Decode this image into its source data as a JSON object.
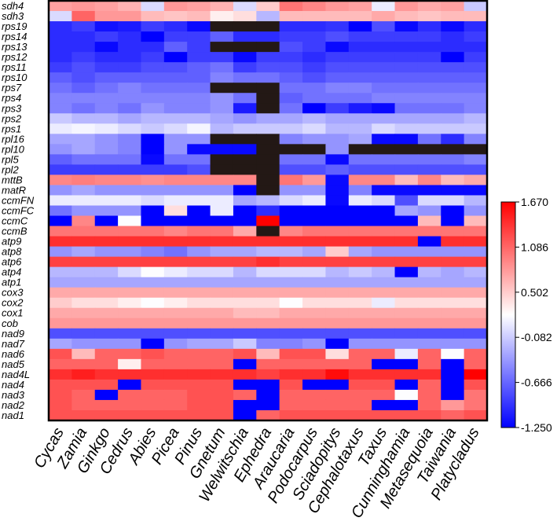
{
  "chart_data": {
    "type": "heatmap",
    "title": "",
    "rows": [
      "sdh4",
      "sdh3",
      "rps19",
      "rps14",
      "rps13",
      "rps12",
      "rps11",
      "rps10",
      "rps7",
      "rps4",
      "rps3",
      "rps2",
      "rps1",
      "rpl16",
      "rpl10",
      "rpl5",
      "rpl2",
      "mttB",
      "matR",
      "ccmFN",
      "ccmFC",
      "ccmC",
      "ccmB",
      "atp9",
      "atp8",
      "atp6",
      "atp4",
      "atp1",
      "cox3",
      "cox2",
      "cox1",
      "cob",
      "nad9",
      "nad7",
      "nad6",
      "nad5",
      "nad4L",
      "nad4",
      "nad3",
      "nad2",
      "nad1"
    ],
    "columns": [
      "Cycas",
      "Zamia",
      "Ginkgo",
      "Cedrus",
      "Abies",
      "Picea",
      "Pinus",
      "Gnetum",
      "Welwitschia",
      "Ephedra",
      "Araucaria",
      "Podocarpus",
      "Sciadopitys",
      "Cephalotaxus",
      "Taxus",
      "Cunninghamia",
      "Metasequoia",
      "Taiwania",
      "Platycladus"
    ],
    "missing_color": "#231815",
    "values": [
      [
        0.75,
        0.8,
        0.75,
        0.65,
        0.0,
        0.8,
        0.75,
        0.65,
        0.0,
        0.5,
        1.0,
        0.9,
        0.8,
        0.75,
        0.1,
        0.8,
        0.7,
        0.75,
        -0.1
      ],
      [
        0.0,
        1.1,
        0.8,
        0.8,
        0.6,
        0.55,
        0.6,
        0.3,
        0.4,
        -0.2,
        0.6,
        0.6,
        0.6,
        0.6,
        0.7,
        0.6,
        0.55,
        0.6,
        0.6
      ],
      [
        -1.0,
        -0.9,
        -1.15,
        -1.1,
        -0.9,
        -1.0,
        -1.2,
        null,
        null,
        null,
        -1.0,
        -1.0,
        -0.95,
        -1.25,
        -0.8,
        -1.2,
        -1.0,
        -1.2,
        -1.0
      ],
      [
        -1.0,
        -1.0,
        -0.9,
        -1.0,
        -1.25,
        -0.9,
        -0.9,
        -0.7,
        -1.0,
        -1.0,
        -0.9,
        -0.9,
        -0.8,
        -0.9,
        -0.9,
        -0.9,
        -0.9,
        -1.0,
        -0.9
      ],
      [
        -1.0,
        -1.0,
        -1.2,
        -1.0,
        -1.0,
        -0.7,
        -0.9,
        null,
        null,
        null,
        -0.8,
        -0.9,
        -1.2,
        -1.0,
        -1.0,
        -1.0,
        -1.0,
        -1.0,
        -1.0
      ],
      [
        -1.0,
        -0.9,
        -1.0,
        -1.0,
        -0.9,
        -1.25,
        -0.9,
        -0.9,
        -1.2,
        -0.9,
        -0.9,
        -1.0,
        -0.9,
        -0.9,
        -0.9,
        -0.9,
        -0.9,
        -1.25,
        -0.9
      ],
      [
        -0.9,
        -0.8,
        -0.9,
        -0.9,
        -0.8,
        -0.8,
        -0.7,
        -0.6,
        -0.9,
        -0.8,
        -0.8,
        -0.9,
        -0.8,
        -0.8,
        -0.8,
        -0.8,
        -0.8,
        -0.8,
        -0.8
      ],
      [
        -0.7,
        -0.8,
        -0.7,
        -0.7,
        -0.7,
        -0.7,
        -0.7,
        -0.5,
        -0.6,
        -0.6,
        -0.7,
        -0.8,
        -0.7,
        -0.7,
        -0.7,
        -0.7,
        -0.7,
        -0.7,
        -0.7
      ],
      [
        -0.6,
        -0.7,
        -0.6,
        -0.5,
        -0.6,
        -0.6,
        -0.6,
        null,
        null,
        null,
        -0.6,
        -0.6,
        -0.5,
        -0.5,
        -0.6,
        -0.6,
        -0.6,
        -0.6,
        -0.6
      ],
      [
        -0.5,
        -0.5,
        -0.5,
        -0.5,
        -0.5,
        -0.5,
        -0.5,
        -0.4,
        -0.6,
        null,
        -0.7,
        -0.6,
        -0.6,
        -0.6,
        -0.5,
        -0.5,
        -0.5,
        -0.5,
        -0.5
      ],
      [
        -0.5,
        -0.6,
        -0.5,
        -0.6,
        -0.4,
        -0.5,
        -0.5,
        -0.4,
        -1.1,
        null,
        -0.6,
        -1.25,
        -0.9,
        -1.1,
        -1.2,
        -0.6,
        -0.6,
        -0.6,
        -0.5
      ],
      [
        -0.1,
        -0.2,
        -0.2,
        -0.3,
        -0.2,
        -0.2,
        -0.2,
        -0.3,
        -0.4,
        -0.3,
        -0.3,
        -0.2,
        -0.3,
        -0.3,
        -0.3,
        -0.3,
        -0.3,
        -0.3,
        -0.2
      ],
      [
        0.1,
        0.15,
        0.1,
        0.0,
        -0.1,
        0.0,
        0.15,
        -0.2,
        -0.1,
        -0.1,
        -0.1,
        0.0,
        -0.2,
        -0.2,
        0.0,
        -0.1,
        -0.1,
        -0.1,
        -0.1
      ],
      [
        -0.3,
        -0.3,
        -0.4,
        -0.5,
        -1.25,
        -0.4,
        -0.4,
        null,
        null,
        null,
        -0.5,
        -0.4,
        -0.4,
        -0.3,
        -1.2,
        -1.2,
        -0.6,
        -1.0,
        -0.5
      ],
      [
        -0.4,
        -0.3,
        -0.4,
        -0.5,
        -1.25,
        -0.4,
        -1.2,
        -1.2,
        -1.2,
        null,
        null,
        null,
        -0.4,
        null,
        null,
        null,
        null,
        null,
        null
      ],
      [
        -0.7,
        -0.6,
        -0.6,
        -0.6,
        -1.2,
        -0.6,
        -0.6,
        null,
        null,
        null,
        -0.6,
        -0.6,
        -1.2,
        -0.6,
        -0.6,
        -0.6,
        -0.6,
        -0.6,
        -0.5
      ],
      [
        -0.9,
        -0.9,
        -0.9,
        -0.9,
        -0.9,
        -0.9,
        -0.8,
        null,
        null,
        null,
        -0.8,
        -0.8,
        -0.7,
        -0.8,
        -0.8,
        -0.8,
        -0.8,
        -0.8,
        -0.8
      ],
      [
        0.9,
        0.95,
        0.9,
        0.9,
        0.85,
        0.9,
        0.9,
        0.9,
        0.9,
        null,
        1.0,
        0.8,
        -1.2,
        0.9,
        0.9,
        0.6,
        0.9,
        0.6,
        0.7
      ],
      [
        -0.4,
        -0.3,
        -0.4,
        -0.4,
        -0.4,
        -0.4,
        -0.4,
        -0.4,
        -1.25,
        null,
        -0.4,
        -0.4,
        -1.2,
        -0.5,
        -1.2,
        -1.2,
        -1.2,
        -1.2,
        -1.2
      ],
      [
        0.1,
        0.1,
        0.1,
        0.1,
        0.0,
        0.1,
        0.1,
        0.1,
        -0.3,
        -0.2,
        0.0,
        0.1,
        -1.2,
        0.1,
        0.0,
        -0.8,
        0.0,
        0.0,
        -0.2
      ],
      [
        -0.6,
        -0.4,
        -0.4,
        -0.4,
        -1.25,
        0.4,
        -1.25,
        0.1,
        -1.25,
        -1.0,
        -1.25,
        -1.25,
        -1.25,
        -1.25,
        -1.25,
        -0.3,
        -0.4,
        -1.25,
        -0.4
      ],
      [
        -1.25,
        0.9,
        -1.25,
        0.2,
        -1.25,
        -1.25,
        -1.25,
        -1.25,
        -1.25,
        1.67,
        -1.25,
        -1.25,
        -1.25,
        -1.25,
        -1.25,
        -1.25,
        0.6,
        -1.25,
        0.6
      ],
      [
        1.0,
        1.0,
        1.0,
        1.0,
        1.0,
        0.9,
        1.0,
        1.0,
        0.7,
        null,
        0.9,
        1.0,
        1.0,
        1.0,
        1.0,
        1.0,
        1.0,
        1.0,
        1.0
      ],
      [
        1.4,
        1.4,
        1.4,
        1.4,
        1.4,
        1.4,
        1.4,
        1.4,
        1.4,
        1.4,
        1.4,
        1.4,
        1.4,
        1.4,
        1.4,
        1.4,
        -1.25,
        1.4,
        1.4
      ],
      [
        -0.4,
        -0.3,
        -0.4,
        -0.4,
        -0.5,
        -0.6,
        -0.4,
        -0.3,
        -0.3,
        -0.2,
        -0.2,
        -0.3,
        0.5,
        -0.3,
        -0.4,
        -0.4,
        -0.4,
        -0.4,
        -0.4
      ],
      [
        1.3,
        1.3,
        1.3,
        1.3,
        1.3,
        1.3,
        1.3,
        1.3,
        1.3,
        1.4,
        1.3,
        1.3,
        1.3,
        1.3,
        1.3,
        1.3,
        1.3,
        1.3,
        1.3
      ],
      [
        -0.2,
        -0.2,
        -0.2,
        0.0,
        0.2,
        0.1,
        0.0,
        0.0,
        -0.2,
        0.0,
        0.0,
        0.0,
        -0.2,
        -0.1,
        -0.2,
        -1.25,
        -0.2,
        -0.3,
        -0.2
      ],
      [
        -0.3,
        -0.3,
        -0.3,
        -0.3,
        -0.3,
        -0.3,
        -0.3,
        -0.3,
        -0.3,
        -0.3,
        -0.3,
        -0.3,
        -0.3,
        -0.3,
        -0.3,
        -0.3,
        -0.3,
        -0.3,
        -0.3
      ],
      [
        0.7,
        0.7,
        0.7,
        0.7,
        0.7,
        0.7,
        0.7,
        0.7,
        0.7,
        0.7,
        0.7,
        0.7,
        0.7,
        0.7,
        0.7,
        0.7,
        0.7,
        0.7,
        0.7
      ],
      [
        0.5,
        0.4,
        0.4,
        0.3,
        0.2,
        0.3,
        0.4,
        0.4,
        0.4,
        0.4,
        0.2,
        0.4,
        0.4,
        0.4,
        0.1,
        0.4,
        0.4,
        0.4,
        0.4
      ],
      [
        0.7,
        0.7,
        0.7,
        0.7,
        0.7,
        0.7,
        0.7,
        0.7,
        0.6,
        0.6,
        0.7,
        0.7,
        0.7,
        0.7,
        0.7,
        0.7,
        0.7,
        0.7,
        0.7
      ],
      [
        0.8,
        0.8,
        0.8,
        0.8,
        0.8,
        0.8,
        0.8,
        0.8,
        0.8,
        0.8,
        0.8,
        0.8,
        0.8,
        0.8,
        0.8,
        0.8,
        0.8,
        0.8,
        0.8
      ],
      [
        -0.8,
        -0.8,
        -0.8,
        -0.8,
        -0.8,
        -0.8,
        -0.8,
        -0.8,
        -0.8,
        -0.8,
        -0.8,
        -0.8,
        -0.8,
        -0.8,
        -0.8,
        -0.8,
        -0.8,
        -0.8,
        -0.8
      ],
      [
        -0.3,
        -0.4,
        -0.4,
        -0.4,
        -1.25,
        -0.4,
        -0.3,
        -0.3,
        -0.1,
        -0.5,
        -0.5,
        -0.4,
        -1.25,
        -0.4,
        -0.4,
        -0.4,
        -0.4,
        -0.4,
        -0.4
      ],
      [
        1.2,
        0.6,
        1.1,
        1.1,
        1.2,
        1.1,
        1.1,
        1.1,
        1.2,
        0.6,
        1.2,
        1.2,
        0.4,
        1.1,
        1.1,
        0.1,
        1.1,
        0.2,
        1.1
      ],
      [
        1.1,
        1.1,
        1.1,
        0.3,
        1.1,
        1.1,
        1.1,
        1.1,
        -1.25,
        1.1,
        1.1,
        1.1,
        1.1,
        1.1,
        -1.25,
        -1.25,
        1.1,
        -1.25,
        1.1
      ],
      [
        1.4,
        1.5,
        1.4,
        1.4,
        1.4,
        1.4,
        1.4,
        1.4,
        1.4,
        1.3,
        1.4,
        1.4,
        1.6,
        1.4,
        1.4,
        1.4,
        1.4,
        -1.25,
        1.67
      ],
      [
        1.2,
        1.2,
        1.2,
        -1.25,
        1.2,
        1.2,
        1.2,
        1.2,
        -1.25,
        -1.25,
        1.2,
        -1.25,
        -1.25,
        1.2,
        1.2,
        -1.25,
        1.1,
        -1.25,
        1.2
      ],
      [
        1.2,
        1.1,
        -1.25,
        1.1,
        1.1,
        1.1,
        1.2,
        1.2,
        1.1,
        -1.25,
        1.1,
        1.1,
        1.1,
        1.1,
        1.1,
        0.2,
        1.1,
        -1.25,
        1.0
      ],
      [
        1.2,
        1.1,
        1.1,
        1.1,
        1.1,
        1.1,
        1.2,
        1.2,
        -1.25,
        -1.25,
        1.1,
        1.1,
        1.1,
        1.1,
        -1.25,
        -1.25,
        1.1,
        0.8,
        1.0
      ],
      [
        1.2,
        1.2,
        1.2,
        1.2,
        1.2,
        1.2,
        1.2,
        1.2,
        -1.25,
        1.1,
        1.2,
        1.2,
        1.2,
        1.2,
        1.2,
        1.2,
        1.2,
        1.1,
        1.2
      ]
    ],
    "colorbar": {
      "min": -1.25,
      "max": 1.67,
      "min_color": "#0000ff",
      "mid_color": "#ffffff",
      "max_color": "#ff0000",
      "tick_labels": [
        "1.670",
        "1.086",
        "0.502",
        "-0.082",
        "-0.666",
        "-1.250"
      ]
    }
  }
}
